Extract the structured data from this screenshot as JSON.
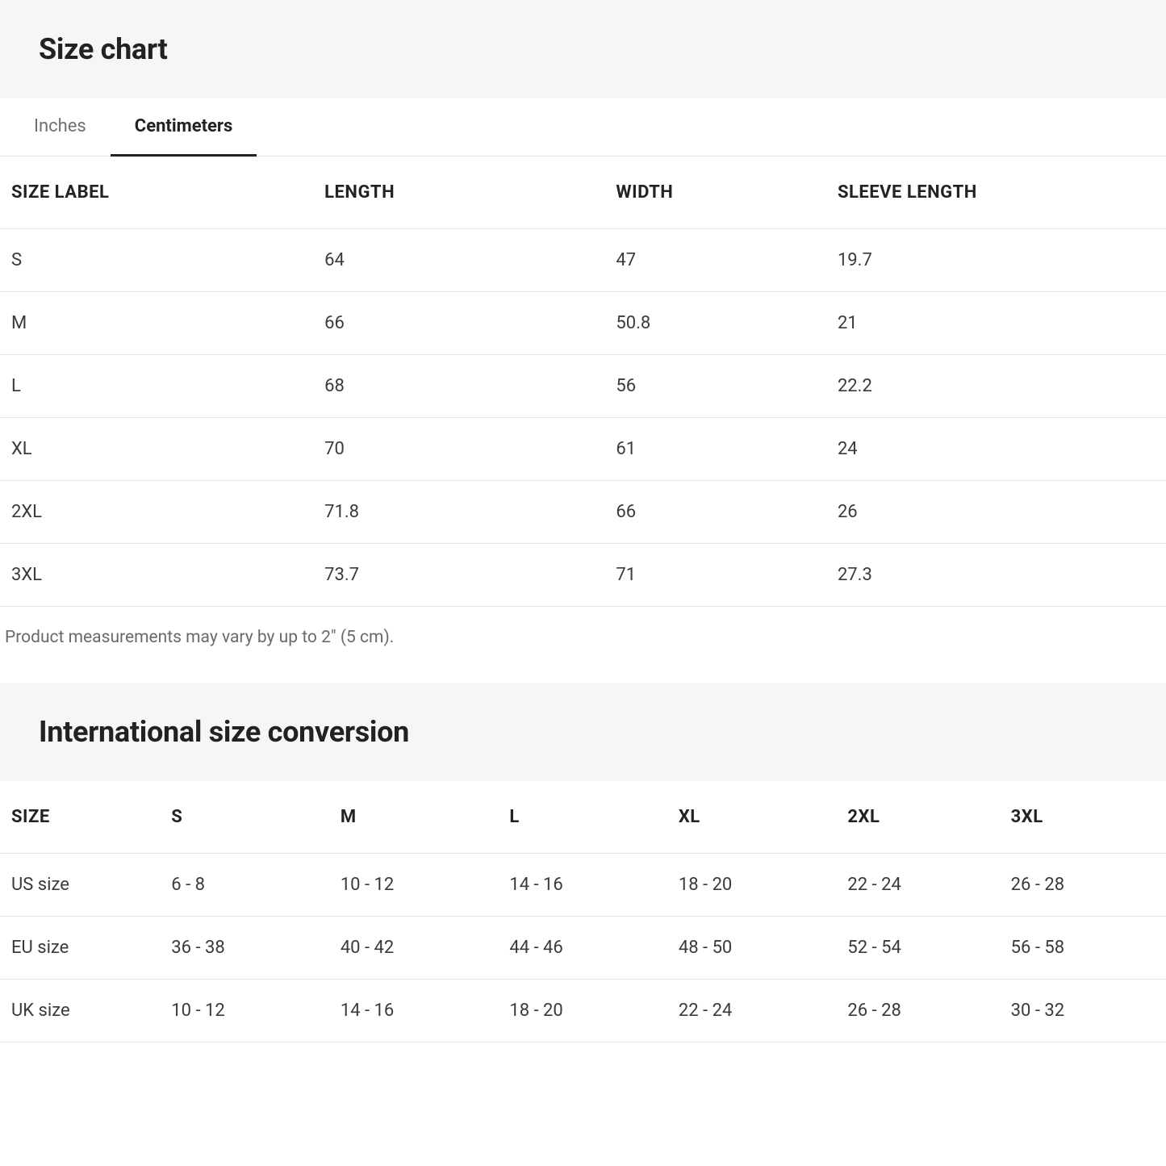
{
  "size_chart": {
    "title": "Size chart",
    "tabs": [
      {
        "label": "Inches",
        "active": false
      },
      {
        "label": "Centimeters",
        "active": true
      }
    ],
    "table": {
      "columns": [
        "SIZE LABEL",
        "LENGTH",
        "WIDTH",
        "SLEEVE LENGTH"
      ],
      "rows": [
        [
          "S",
          "64",
          "47",
          "19.7"
        ],
        [
          "M",
          "66",
          "50.8",
          "21"
        ],
        [
          "L",
          "68",
          "56",
          "22.2"
        ],
        [
          "XL",
          "70",
          "61",
          "24"
        ],
        [
          "2XL",
          "71.8",
          "66",
          "26"
        ],
        [
          "3XL",
          "73.7",
          "71",
          "27.3"
        ]
      ],
      "column_widths_pct": [
        27,
        25,
        19,
        29
      ],
      "border_color": "#e3e3e3",
      "header_fontsize": 22,
      "cell_fontsize": 22,
      "text_color": "#3a3a3a",
      "header_color": "#222222"
    },
    "note": "Product measurements may vary by up to 2\" (5 cm).",
    "note_color": "#6a6a6a",
    "header_bg": "#f6f6f6"
  },
  "international": {
    "title": "International size conversion",
    "header_bg": "#f6f6f6",
    "table": {
      "columns": [
        "SIZE",
        "S",
        "M",
        "L",
        "XL",
        "2XL",
        "3XL"
      ],
      "rows": [
        [
          "US size",
          "6 - 8",
          "10 - 12",
          "14 - 16",
          "18 - 20",
          "22 - 24",
          "26 - 28"
        ],
        [
          "EU size",
          "36 - 38",
          "40 - 42",
          "44 - 46",
          "48 - 50",
          "52 - 54",
          "56 - 58"
        ],
        [
          "UK size",
          "10 - 12",
          "14 - 16",
          "18 - 20",
          "22 - 24",
          "26 - 28",
          "30 - 32"
        ]
      ],
      "border_color": "#e3e3e3",
      "header_fontsize": 22,
      "cell_fontsize": 22,
      "text_color": "#3a3a3a",
      "header_color": "#222222"
    }
  },
  "colors": {
    "background": "#ffffff",
    "section_header_bg": "#f6f6f6",
    "tab_inactive": "#6f6f6f",
    "tab_active": "#222222",
    "tab_underline": "#222222",
    "border": "#e3e3e3"
  }
}
